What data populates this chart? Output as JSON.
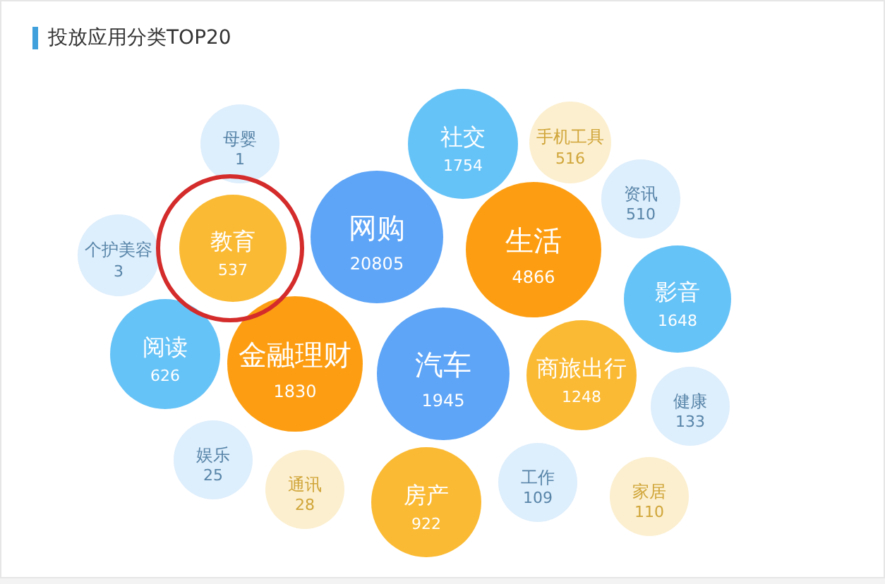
{
  "chart_data": {
    "type": "other",
    "title": "投放应用分类TOP20",
    "categories": [
      "母婴",
      "社交",
      "手机工具",
      "资讯",
      "个护美容",
      "教育",
      "网购",
      "生活",
      "影音",
      "阅读",
      "金融理财",
      "汽车",
      "商旅出行",
      "健康",
      "娱乐",
      "通讯",
      "房产",
      "工作",
      "家居"
    ],
    "values": [
      1,
      1754,
      516,
      510,
      3,
      537,
      20805,
      4866,
      1648,
      626,
      1830,
      1945,
      1248,
      133,
      25,
      28,
      922,
      109,
      110
    ],
    "data_labels": true,
    "colors": [
      "#ddeefc",
      "#66c3f7",
      "#fcefcf",
      "#ddeefc",
      "#ddeefc",
      "#fbba33",
      "#5ea5f7",
      "#fd9e12",
      "#66c3f7",
      "#66c3f7",
      "#fd9e12",
      "#5ea5f7",
      "#fbba33",
      "#ddeefc",
      "#ddeefc",
      "#fcefcf",
      "#fbba33",
      "#ddeefc",
      "#fcefcf"
    ]
  }
}
